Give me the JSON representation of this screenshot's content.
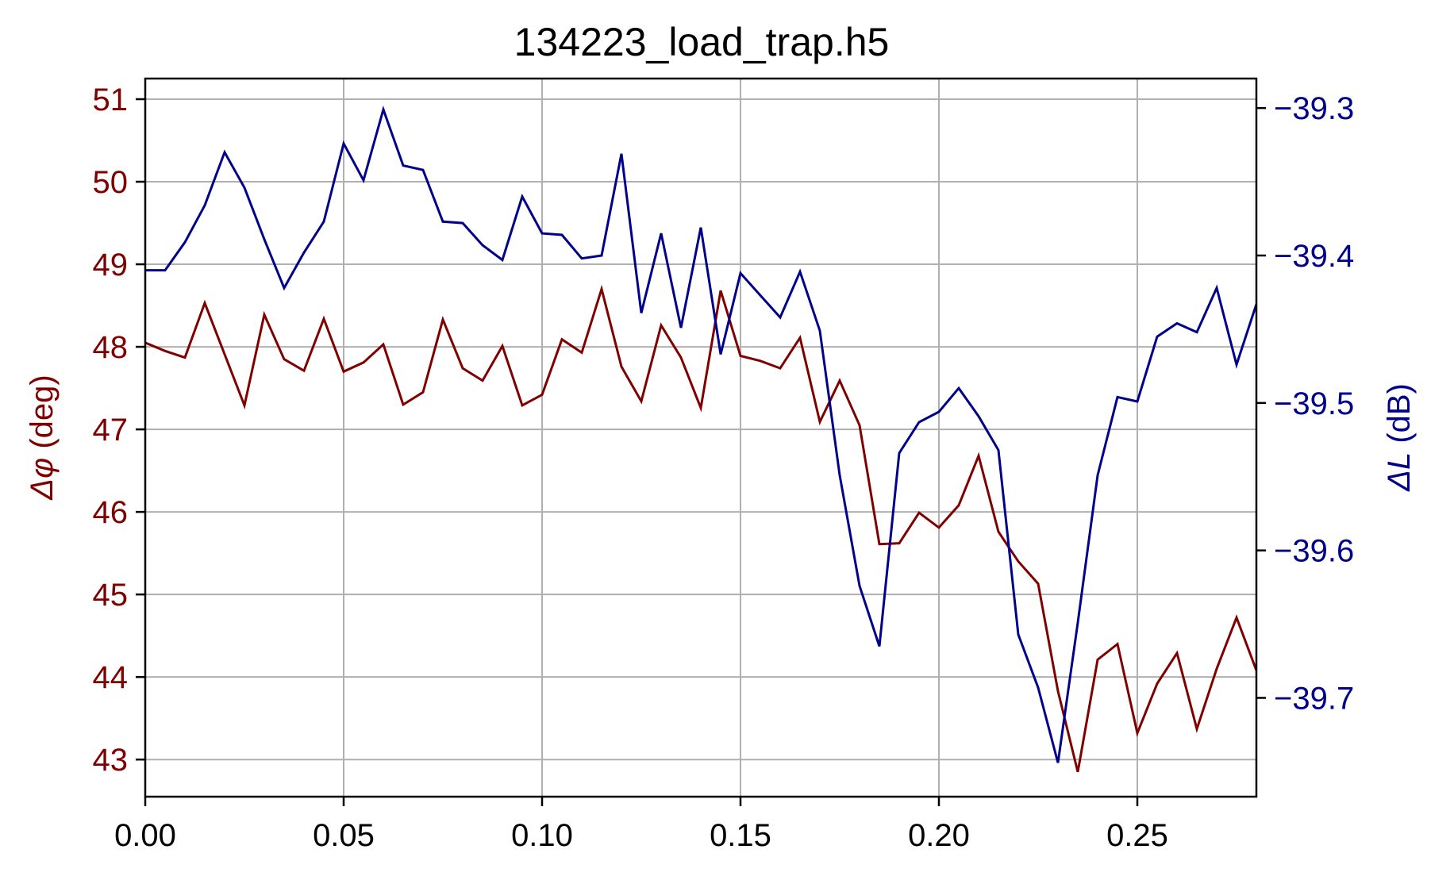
{
  "chart_data": {
    "type": "line",
    "title": "134223_load_trap.h5",
    "grid": true,
    "x_axis": {
      "xlim": [
        0.0,
        0.28
      ],
      "ticks": [
        0.0,
        0.05,
        0.1,
        0.15,
        0.2,
        0.25
      ],
      "tick_labels": [
        "0.00",
        "0.05",
        "0.10",
        "0.15",
        "0.20",
        "0.25"
      ]
    },
    "left_axis": {
      "label_symbol": "Δφ",
      "label_unit": " (deg)",
      "color": "#800000",
      "ylim": [
        42.55,
        51.25
      ],
      "ticks": [
        43,
        44,
        45,
        46,
        47,
        48,
        49,
        50,
        51
      ],
      "tick_labels": [
        "43",
        "44",
        "45",
        "46",
        "47",
        "48",
        "49",
        "50",
        "51"
      ]
    },
    "right_axis": {
      "label_symbol": "ΔL",
      "label_unit": " (dB)",
      "color": "#00008b",
      "ylim": [
        -39.767,
        -39.28
      ],
      "ticks": [
        -39.3,
        -39.4,
        -39.5,
        -39.6,
        -39.7
      ],
      "tick_labels": [
        "−39.3",
        "−39.4",
        "−39.5",
        "−39.6",
        "−39.7"
      ]
    },
    "x": [
      0.0,
      0.005,
      0.01,
      0.015,
      0.02,
      0.025,
      0.03,
      0.035,
      0.04,
      0.045,
      0.05,
      0.055,
      0.06,
      0.065,
      0.07,
      0.075,
      0.08,
      0.085,
      0.09,
      0.095,
      0.1,
      0.105,
      0.11,
      0.115,
      0.12,
      0.125,
      0.13,
      0.135,
      0.14,
      0.145,
      0.15,
      0.155,
      0.16,
      0.165,
      0.17,
      0.175,
      0.18,
      0.185,
      0.19,
      0.195,
      0.2,
      0.205,
      0.21,
      0.215,
      0.22,
      0.225,
      0.23,
      0.235,
      0.24,
      0.245,
      0.25,
      0.255,
      0.26,
      0.265,
      0.27,
      0.275,
      0.28
    ],
    "series": [
      {
        "axis": "left",
        "color": "#800000",
        "values": [
          48.05,
          47.95,
          47.87,
          48.53,
          47.91,
          47.29,
          48.39,
          47.85,
          47.71,
          48.34,
          47.7,
          47.81,
          48.03,
          47.3,
          47.45,
          48.33,
          47.74,
          47.59,
          48.01,
          47.29,
          47.42,
          48.09,
          47.93,
          48.7,
          47.76,
          47.34,
          48.26,
          47.87,
          47.26,
          48.68,
          47.89,
          47.83,
          47.74,
          48.11,
          47.09,
          47.59,
          47.05,
          45.61,
          45.62,
          45.99,
          45.81,
          46.08,
          46.68,
          45.76,
          45.4,
          45.13,
          43.83,
          42.85,
          44.21,
          44.4,
          43.32,
          43.92,
          44.29,
          43.37,
          44.1,
          44.72,
          44.08
        ]
      },
      {
        "axis": "right",
        "color": "#00008b",
        "values": [
          -39.41,
          -39.41,
          -39.391,
          -39.366,
          -39.33,
          -39.354,
          -39.389,
          -39.422,
          -39.398,
          -39.377,
          -39.324,
          -39.349,
          -39.301,
          -39.339,
          -39.342,
          -39.377,
          -39.378,
          -39.393,
          -39.403,
          -39.36,
          -39.385,
          -39.386,
          -39.402,
          -39.4,
          -39.331,
          -39.439,
          -39.385,
          -39.449,
          -39.381,
          -39.467,
          -39.412,
          -39.427,
          -39.442,
          -39.411,
          -39.451,
          -39.549,
          -39.624,
          -39.665,
          -39.534,
          -39.513,
          -39.506,
          -39.49,
          -39.509,
          -39.532,
          -39.657,
          -39.693,
          -39.744,
          -39.649,
          -39.549,
          -39.496,
          -39.499,
          -39.455,
          -39.446,
          -39.452,
          -39.422,
          -39.474,
          -39.433
        ]
      }
    ]
  }
}
